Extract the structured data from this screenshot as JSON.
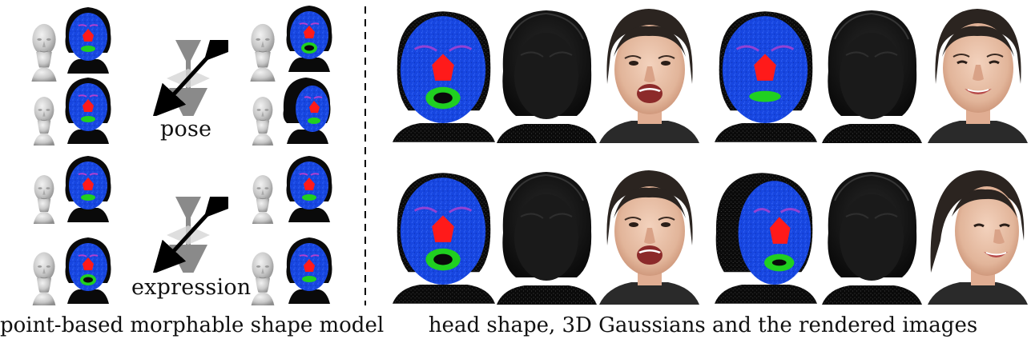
{
  "figure": {
    "left_caption": "point-based morphable shape model",
    "right_caption": "head shape, 3D Gaussians and the rendered images",
    "labels": {
      "pose": "pose",
      "expression": "expression"
    },
    "colors": {
      "face_points": "#1746e0",
      "nose_region": "#ff1a1a",
      "mouth_region": "#20d020",
      "eye_region": "#b040d0",
      "hair_black": "#0a0a0a",
      "mesh_gray": "#c9c9c9",
      "arrow_black": "#000000",
      "arrow_gray": "#8a8a8a"
    }
  }
}
